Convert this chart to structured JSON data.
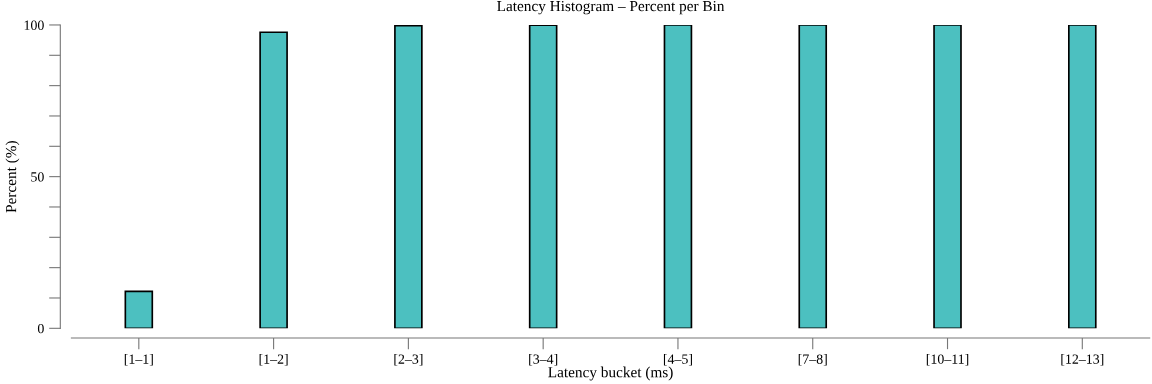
{
  "chart_data": {
    "type": "bar",
    "title": "Latency Histogram – Percent per Bin",
    "xlabel": "Latency bucket (ms)",
    "ylabel": "Percent (%)",
    "categories": [
      "[1–1]",
      "[1–2]",
      "[2–3]",
      "[3–4]",
      "[4–5]",
      "[7–8]",
      "[10–11]",
      "[12–13]"
    ],
    "values": [
      12.2,
      97.6,
      99.8,
      99.9,
      100,
      100,
      100,
      100
    ],
    "color": "#4cc0c0",
    "ylim": [
      0,
      100
    ],
    "yticks": [
      0,
      {
        "value": 10,
        "label": null
      },
      {
        "value": 20,
        "label": null
      },
      {
        "value": 30,
        "label": null
      },
      {
        "value": 40,
        "label": null
      },
      50,
      {
        "value": 60,
        "label": null
      },
      {
        "value": 70,
        "label": null
      },
      {
        "value": 80,
        "label": null
      },
      {
        "value": 90,
        "label": null
      },
      100
    ],
    "grid": false,
    "legend": false
  }
}
